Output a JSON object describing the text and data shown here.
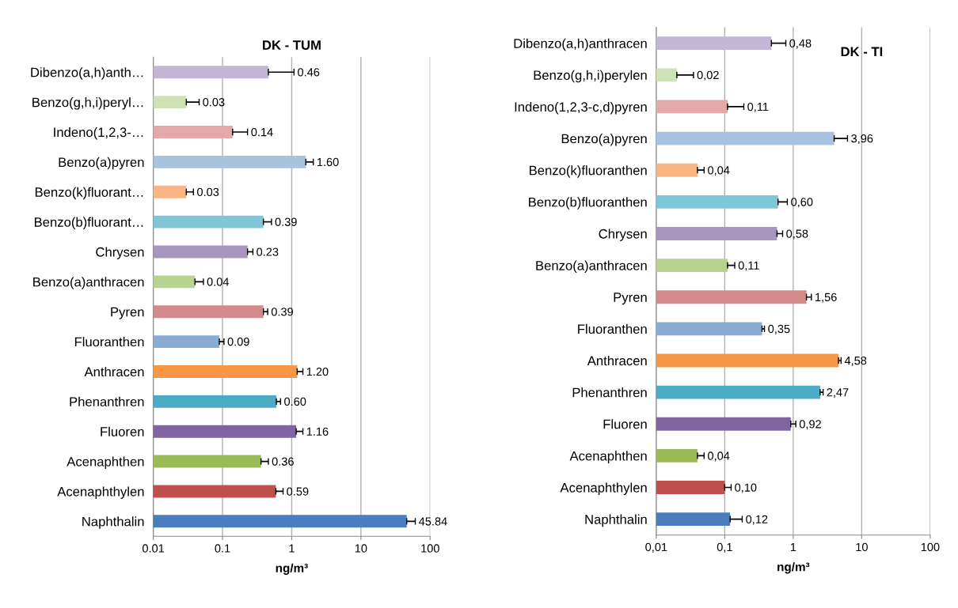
{
  "chart_data": [
    {
      "type": "bar",
      "orientation": "horizontal",
      "title": "DK - TUM",
      "xlabel": "ng/m³",
      "log": "x",
      "grid": "x",
      "categories": [
        "Dibenzo(a,h)anth…",
        "Benzo(g,h,i)peryl…",
        "Indeno(1,2,3-…",
        "Benzo(a)pyren",
        "Benzo(k)fluorant…",
        "Benzo(b)fluorant…",
        "Chrysen",
        "Benzo(a)anthracen",
        "Pyren",
        "Fluoranthen",
        "Anthracen",
        "Phenanthren",
        "Fluoren",
        "Acenaphthen",
        "Acenaphthylen",
        "Naphthalin"
      ],
      "values": [
        0.46,
        0.03,
        0.14,
        1.6,
        0.03,
        0.39,
        0.23,
        0.04,
        0.39,
        0.09,
        1.2,
        0.6,
        1.16,
        0.36,
        0.59,
        45.84
      ],
      "colors": [
        "#c2b5d6",
        "#cfe2b6",
        "#e3a9a9",
        "#a9c3df",
        "#fab682",
        "#7fc7d7",
        "#a795c0",
        "#b8d290",
        "#d48a8a",
        "#8aacd4",
        "#f79646",
        "#4bacc6",
        "#8064a2",
        "#9bbb59",
        "#c0504d",
        "#4a7ebf"
      ],
      "errors": [
        [
          0.46,
          1.08
        ],
        [
          0.03,
          0.046
        ],
        [
          0.14,
          0.23
        ],
        [
          1.6,
          2.05
        ],
        [
          0.03,
          0.038
        ],
        [
          0.39,
          0.51
        ],
        [
          0.23,
          0.275
        ],
        [
          0.04,
          0.053
        ],
        [
          0.39,
          0.45
        ],
        [
          0.09,
          0.105
        ],
        [
          1.2,
          1.45
        ],
        [
          0.6,
          0.69
        ],
        [
          1.16,
          1.45
        ],
        [
          0.36,
          0.46
        ],
        [
          0.59,
          0.75
        ],
        [
          45.84,
          61
        ]
      ],
      "value_labels": [
        "0.46",
        "0.03",
        "0.14",
        "1.60",
        "0.03",
        "0.39",
        "0.23",
        "0.04",
        "0.39",
        "0.09",
        "1.20",
        "0.60",
        "1.16",
        "0.36",
        "0.59",
        "45.84"
      ],
      "xlim": [
        0.01,
        100
      ],
      "xticks": [
        0.01,
        0.1,
        1,
        10,
        100
      ]
    },
    {
      "type": "bar",
      "orientation": "horizontal",
      "title": "DK - TI",
      "xlabel": "ng/m³",
      "log": "x",
      "grid": "x",
      "categories": [
        "Dibenzo(a,h)anthracen",
        "Benzo(g,h,i)perylen",
        "Indeno(1,2,3-c,d)pyren",
        "Benzo(a)pyren",
        "Benzo(k)fluoranthen",
        "Benzo(b)fluoranthen",
        "Chrysen",
        "Benzo(a)anthracen",
        "Pyren",
        "Fluoranthen",
        "Anthracen",
        "Phenanthren",
        "Fluoren",
        "Acenaphthen",
        "Acenaphthylen",
        "Naphthalin"
      ],
      "values": [
        0.48,
        0.02,
        0.11,
        3.96,
        0.04,
        0.6,
        0.58,
        0.11,
        1.56,
        0.35,
        4.58,
        2.47,
        0.92,
        0.04,
        0.1,
        0.12
      ],
      "colors": [
        "#c2b5d6",
        "#cfe2b6",
        "#e3a9a9",
        "#a9c3df",
        "#fab682",
        "#7fc7d7",
        "#a795c0",
        "#b8d290",
        "#d48a8a",
        "#8aacd4",
        "#f79646",
        "#4bacc6",
        "#8064a2",
        "#9bbb59",
        "#c0504d",
        "#4a7ebf"
      ],
      "errors": [
        [
          0.48,
          0.78
        ],
        [
          0.02,
          0.035
        ],
        [
          0.11,
          0.19
        ],
        [
          3.96,
          6.2
        ],
        [
          0.04,
          0.05
        ],
        [
          0.6,
          0.82
        ],
        [
          0.58,
          0.7
        ],
        [
          0.11,
          0.14
        ],
        [
          1.56,
          1.84
        ],
        [
          0.35,
          0.38
        ],
        [
          4.58,
          5.0
        ],
        [
          2.47,
          2.73
        ],
        [
          0.92,
          1.09
        ],
        [
          0.04,
          0.05
        ],
        [
          0.1,
          0.124
        ],
        [
          0.12,
          0.18
        ]
      ],
      "value_labels": [
        "0,48",
        "0,02",
        "0,11",
        "3,96",
        "0,04",
        "0,60",
        "0,58",
        "0,11",
        "1,56",
        "0,35",
        "4,58",
        "2,47",
        "0,92",
        "0,04",
        "0,10",
        "0,12"
      ],
      "xlim": [
        0.01,
        100
      ],
      "xticks": [
        {
          "value": 0.01,
          "label": "0,01"
        },
        {
          "value": 0.1,
          "label": "0,1"
        },
        1,
        10,
        100
      ]
    }
  ]
}
